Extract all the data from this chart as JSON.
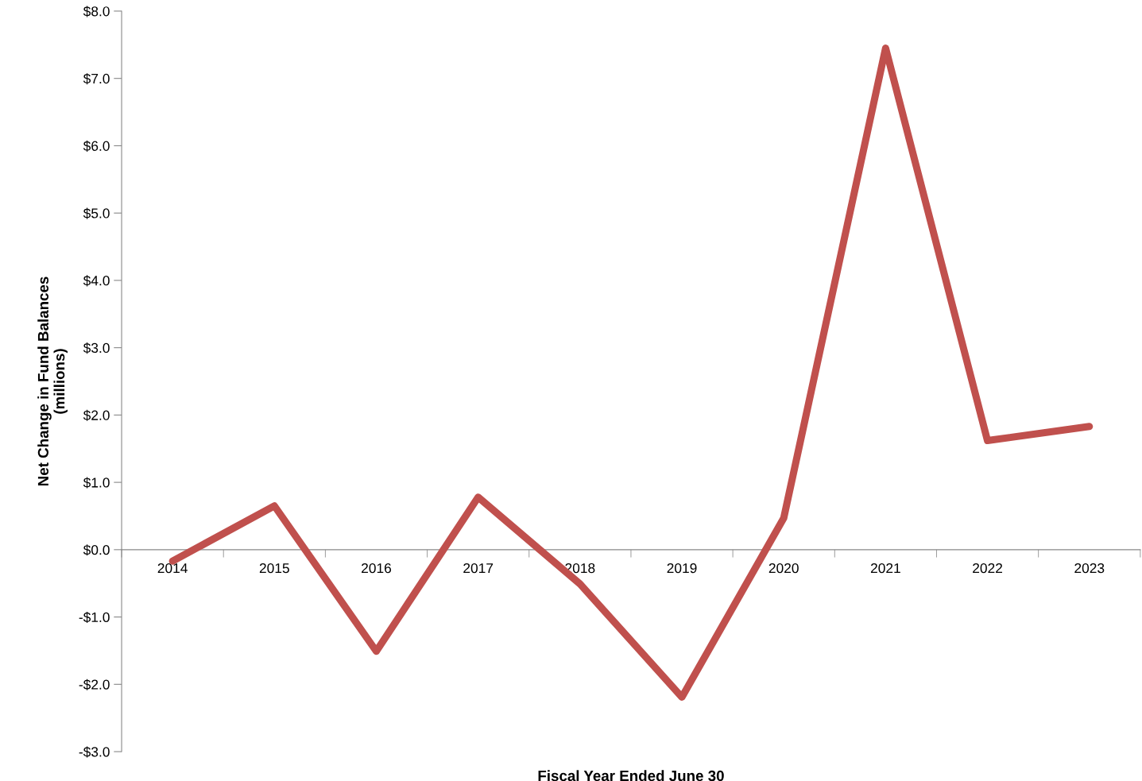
{
  "chart_data": {
    "type": "line",
    "xlabel": "Fiscal Year Ended June 30",
    "ylabel": "Net Change in Fund Balances\n(millions)",
    "categories": [
      "2014",
      "2015",
      "2016",
      "2017",
      "2018",
      "2019",
      "2020",
      "2021",
      "2022",
      "2023"
    ],
    "series": [
      {
        "color": "#c0504d",
        "values": [
          -0.17,
          0.65,
          -1.51,
          0.78,
          -0.51,
          -2.19,
          0.47,
          7.45,
          1.62,
          1.83
        ]
      }
    ],
    "ylim": [
      -3,
      8
    ],
    "yticks": [
      {
        "value": -3,
        "label": "-$3.0"
      },
      {
        "value": -2,
        "label": "-$2.0"
      },
      {
        "value": -1,
        "label": "-$1.0"
      },
      {
        "value": 0,
        "label": "$0.0"
      },
      {
        "value": 1,
        "label": "$1.0"
      },
      {
        "value": 2,
        "label": "$2.0"
      },
      {
        "value": 3,
        "label": "$3.0"
      },
      {
        "value": 4,
        "label": "$4.0"
      },
      {
        "value": 5,
        "label": "$5.0"
      },
      {
        "value": 6,
        "label": "$6.0"
      },
      {
        "value": 7,
        "label": "$7.0"
      },
      {
        "value": 8,
        "label": "$8.0"
      }
    ],
    "grid": false,
    "legend": false,
    "marker": "none",
    "line_style": "solid"
  }
}
